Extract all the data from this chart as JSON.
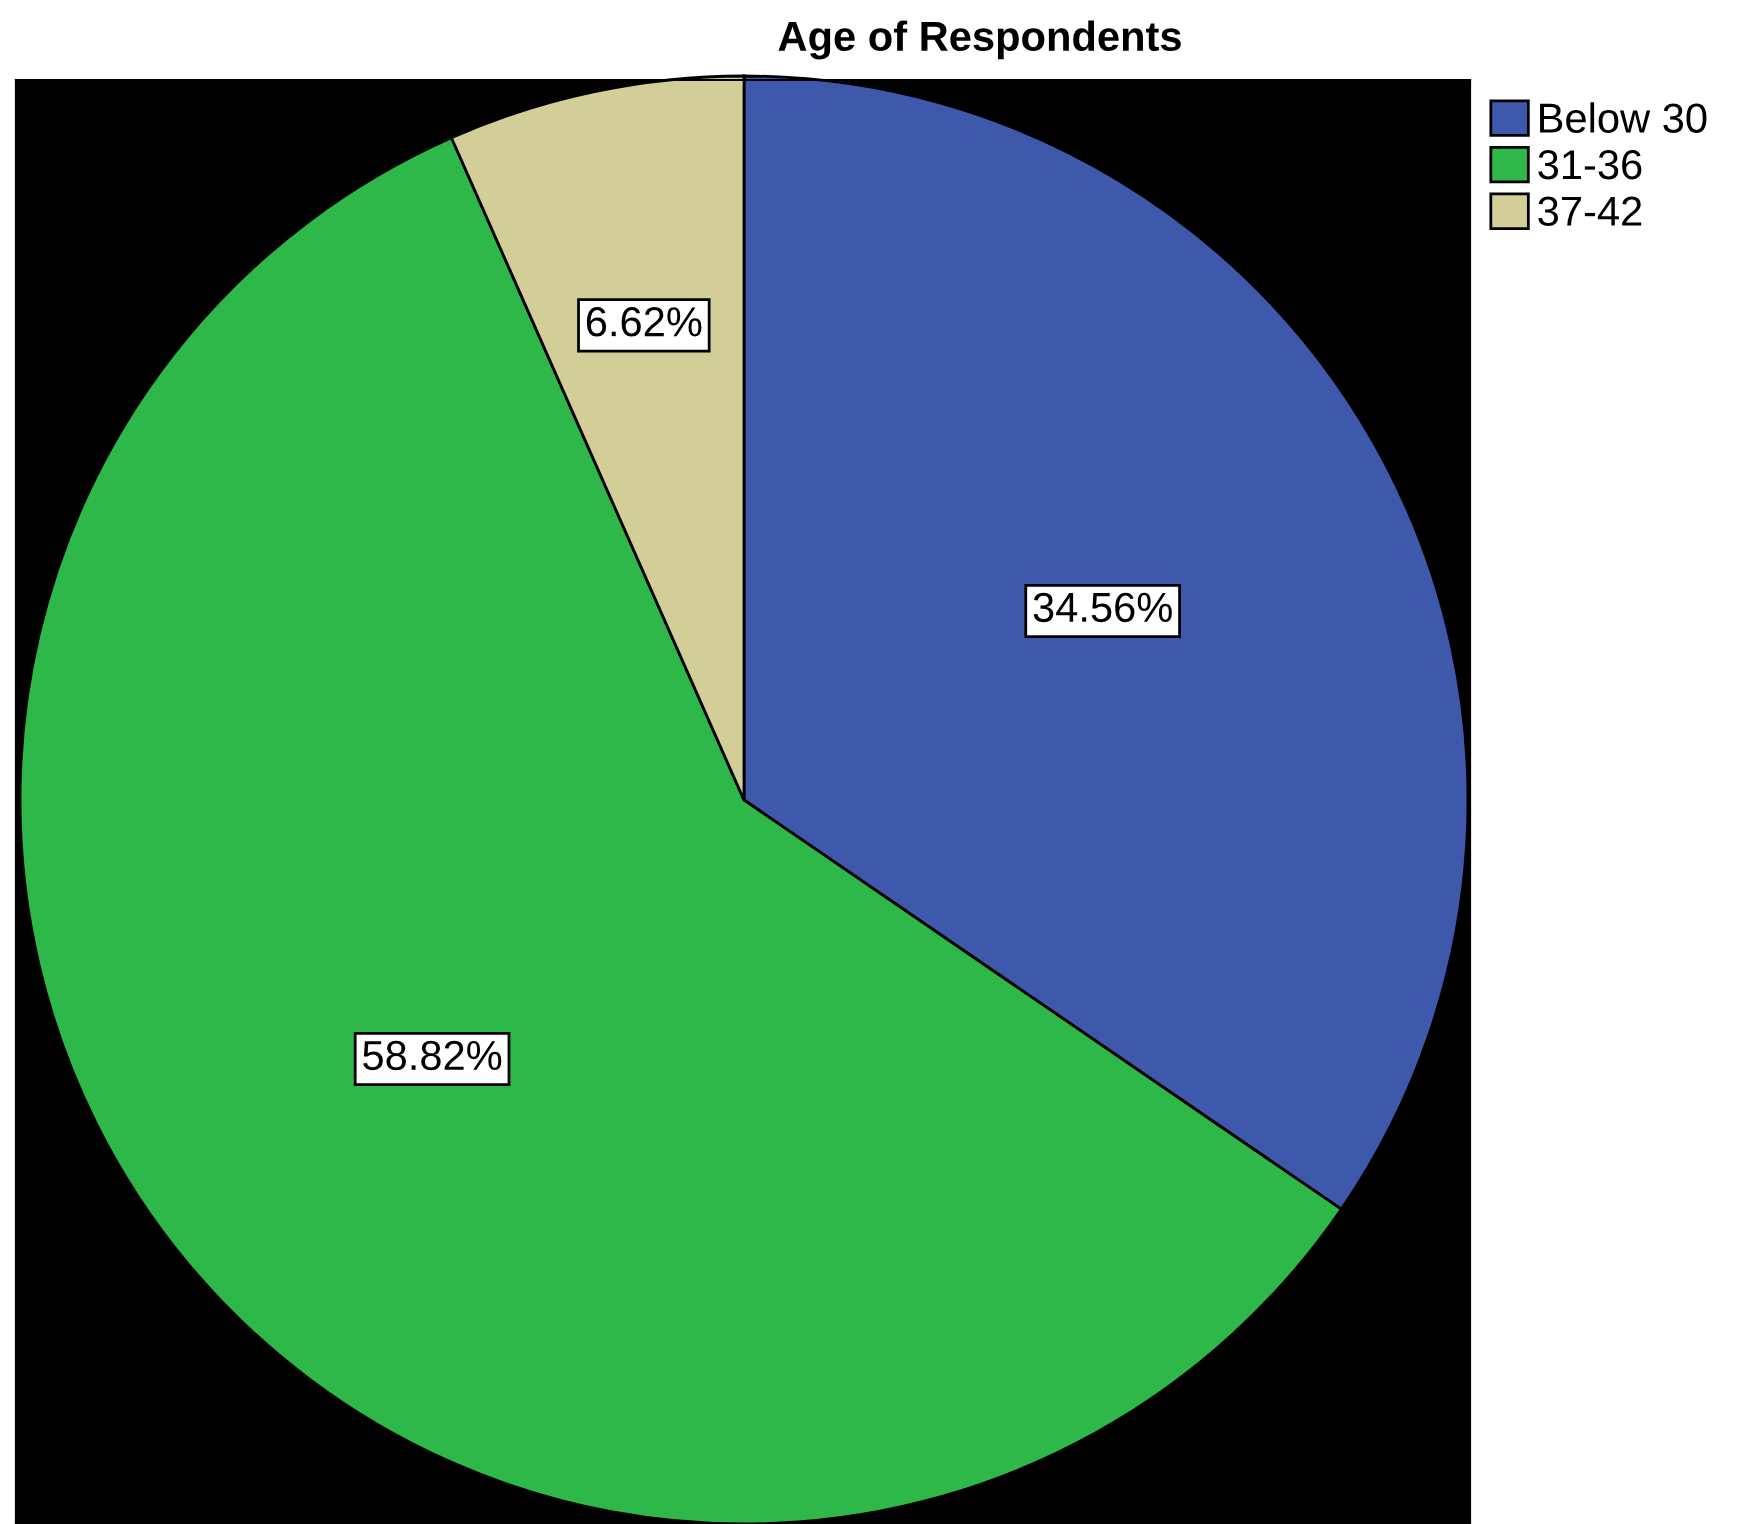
{
  "chart_data": {
    "type": "pie",
    "title": "Age of Respondents",
    "categories": [
      "Below 30",
      "31-36",
      "37-42"
    ],
    "values": [
      34.56,
      58.82,
      6.62
    ],
    "colors": [
      "#3e58ac",
      "#2eb84a",
      "#d3ce97"
    ],
    "value_labels": [
      "34.56%",
      "58.82%",
      "6.62%"
    ],
    "legend": "top right"
  }
}
